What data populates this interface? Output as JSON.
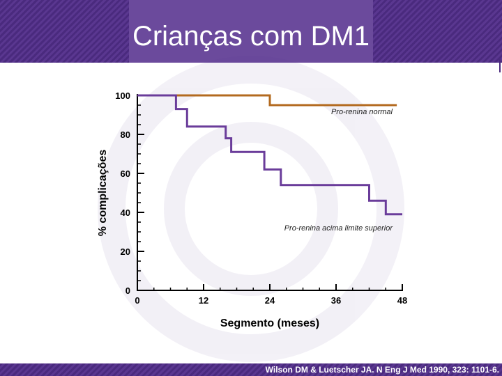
{
  "slide": {
    "title": "Crianças com DM1",
    "citation": "Wilson DM & Luetscher JA. N Eng J Med 1990, 323: 1101-6.",
    "colors": {
      "accent": "#5a3790",
      "header": "#6b4a9c"
    }
  },
  "chart_data": {
    "type": "line",
    "title": "",
    "xlabel": "Segmento (meses)",
    "ylabel": "% complicações",
    "xlim": [
      0,
      48
    ],
    "ylim": [
      0,
      100
    ],
    "xticks": [
      0,
      12,
      24,
      36,
      48
    ],
    "xtick_labels": [
      "0",
      "12",
      "24",
      "36",
      "48"
    ],
    "yticks": [
      0,
      20,
      40,
      60,
      80,
      100
    ],
    "ytick_labels": [
      "0",
      "20",
      "40",
      "60",
      "80",
      "100"
    ],
    "grid": false,
    "series": [
      {
        "name": "Pro-renina normal",
        "color": "#b36a1f",
        "step": true,
        "x": [
          0,
          24,
          24,
          47
        ],
        "y": [
          100,
          100,
          95,
          95
        ]
      },
      {
        "name": "Pro-renina acima limite superior",
        "color": "#6a3c9a",
        "step": true,
        "x": [
          0,
          7,
          7,
          9,
          9,
          11,
          11,
          16,
          16,
          17,
          17,
          23,
          23,
          26,
          26,
          42,
          42,
          45,
          45,
          47,
          47,
          48
        ],
        "y": [
          100,
          100,
          93,
          93,
          84,
          84,
          84,
          84,
          78,
          78,
          71,
          71,
          62,
          62,
          54,
          54,
          46,
          46,
          39,
          39,
          39,
          39
        ]
      }
    ]
  }
}
